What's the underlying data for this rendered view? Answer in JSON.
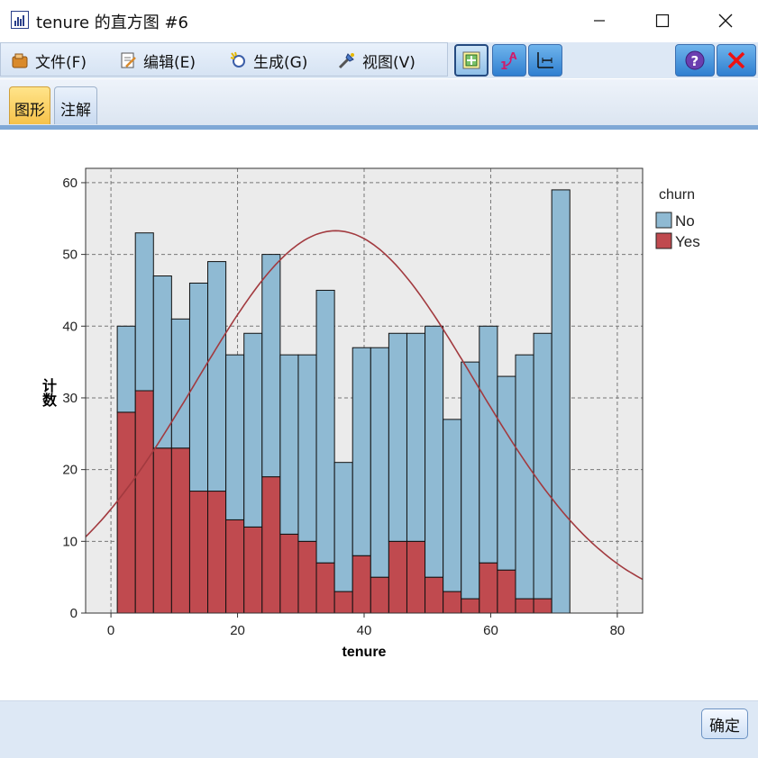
{
  "window": {
    "title": "tenure 的直方图 #6"
  },
  "menu": {
    "items": [
      {
        "label": "文件(F)",
        "icon": "file-icon"
      },
      {
        "label": "编辑(E)",
        "icon": "edit-icon"
      },
      {
        "label": "生成(G)",
        "icon": "generate-icon"
      },
      {
        "label": "视图(V)",
        "icon": "view-icon"
      }
    ]
  },
  "tabs": [
    {
      "label": "图形",
      "active": true
    },
    {
      "label": "注解",
      "active": false
    }
  ],
  "footer": {
    "ok_label": "确定"
  },
  "colors": {
    "no": "#8fbad3",
    "yes": "#c04a4f",
    "curve": "#a23a3f",
    "plot_bg": "#ebebeb"
  },
  "chart_data": {
    "type": "bar",
    "stacked": true,
    "xlabel": "tenure",
    "ylabel": "计数",
    "legend_title": "churn",
    "legend_position": "right",
    "xlim": [
      -4,
      84
    ],
    "ylim": [
      0,
      62
    ],
    "xticks": [
      0,
      20,
      40,
      60,
      80
    ],
    "yticks": [
      0,
      10,
      20,
      30,
      40,
      50,
      60
    ],
    "grid": true,
    "bin_width": 2.86,
    "bin_starts": [
      1.0,
      3.86,
      6.72,
      9.58,
      12.44,
      15.3,
      18.16,
      21.02,
      23.88,
      26.74,
      29.6,
      32.46,
      35.32,
      38.18,
      41.04,
      43.9,
      46.76,
      49.62,
      52.48,
      55.34,
      58.2,
      61.06,
      63.92,
      66.78,
      69.64
    ],
    "series": [
      {
        "name": "No",
        "values": [
          12,
          22,
          24,
          18,
          29,
          32,
          23,
          27,
          31,
          25,
          26,
          38,
          18,
          29,
          32,
          29,
          29,
          35,
          24,
          33,
          33,
          27,
          34,
          37,
          59
        ]
      },
      {
        "name": "Yes",
        "values": [
          28,
          31,
          23,
          23,
          17,
          17,
          13,
          12,
          19,
          11,
          10,
          7,
          3,
          8,
          5,
          10,
          10,
          5,
          3,
          2,
          7,
          6,
          2,
          2,
          0
        ]
      }
    ],
    "normal_curve": {
      "mean": 35.5,
      "peak": 53.3,
      "sd": 22.0
    }
  }
}
